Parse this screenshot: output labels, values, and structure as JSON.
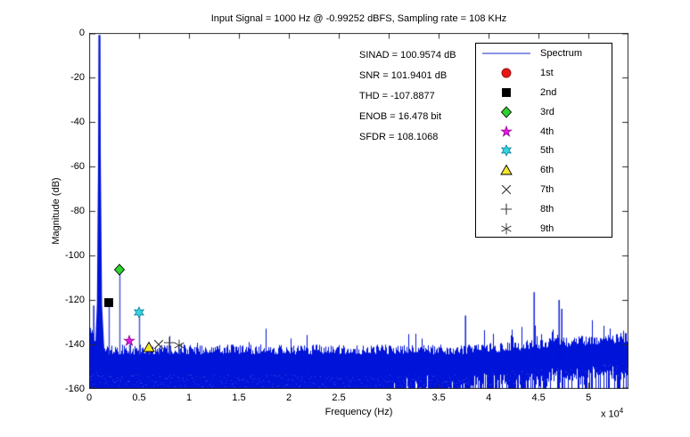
{
  "figure": {
    "title": "Input Signal = 1000 Hz @ -0.99252 dBFS, Sampling rate = 108 KHz",
    "xlabel": "Frequency (Hz)",
    "ylabel": "Magnitude (dB)",
    "x_multiplier_base": "x 10",
    "x_multiplier_exponent": "4"
  },
  "stats": {
    "lines": [
      "SINAD = 100.9574 dB",
      "SNR = 101.9401 dB",
      "THD = -107.8877",
      "ENOB = 16.478 bit",
      "SFDR = 108.1068"
    ]
  },
  "legend": {
    "items": [
      {
        "label": "Spectrum",
        "marker": "line",
        "color": "#4553d6",
        "edge": "#4553d6"
      },
      {
        "label": "1st",
        "marker": "circle",
        "color": "#e81616",
        "edge": "#991111"
      },
      {
        "label": "2nd",
        "marker": "square",
        "color": "#000000",
        "edge": "#000000"
      },
      {
        "label": "3rd",
        "marker": "diamond",
        "color": "#2fd32f",
        "edge": "#000000"
      },
      {
        "label": "4th",
        "marker": "star5",
        "color": "#e318e3",
        "edge": "#930d93"
      },
      {
        "label": "5th",
        "marker": "star6",
        "color": "#35d3e0",
        "edge": "#0d7f99"
      },
      {
        "label": "6th",
        "marker": "triangle",
        "color": "#f4e72a",
        "edge": "#000000"
      },
      {
        "label": "7th",
        "marker": "x",
        "color": "#3d3d3d",
        "edge": "#3d3d3d"
      },
      {
        "label": "8th",
        "marker": "plus",
        "color": "#3d3d3d",
        "edge": "#3d3d3d"
      },
      {
        "label": "9th",
        "marker": "asterisk",
        "color": "#3d3d3d",
        "edge": "#3d3d3d"
      }
    ]
  },
  "chart_data": {
    "type": "line",
    "title": "Input Signal = 1000 Hz @ -0.99252 dBFS, Sampling rate = 108 KHz",
    "xlabel": "Frequency (Hz)",
    "ylabel": "Magnitude (dB)",
    "x_tick_unit": "x 10^4",
    "xlim_hz": [
      0,
      54000
    ],
    "ylim_db": [
      -160,
      0
    ],
    "grid": false,
    "legend_position": "upper right",
    "series_name": "Spectrum",
    "series_color": "#0013d8",
    "sampling_rate_khz": 108,
    "x_tick_values_hz": [
      0,
      5000,
      10000,
      15000,
      20000,
      25000,
      30000,
      35000,
      40000,
      45000,
      50000
    ],
    "x_tick_labels": [
      "0",
      "0.5",
      "1",
      "1.5",
      "2",
      "2.5",
      "3",
      "3.5",
      "4",
      "4.5",
      "5"
    ],
    "y_tick_values_db": [
      0,
      -20,
      -40,
      -60,
      -80,
      -100,
      -120,
      -140,
      -160
    ],
    "y_tick_labels": [
      "0",
      "-20",
      "-40",
      "-60",
      "-80",
      "-100",
      "-120",
      "-140",
      "-160"
    ],
    "fundamental": {
      "label": "1st",
      "freq_hz": 1000,
      "level_db": -0.99252,
      "marker": "circle",
      "color": "#e81616",
      "edge": "#991111",
      "marker_shown": false
    },
    "fundamental_skirt_points": [
      [
        560,
        -146
      ],
      [
        780,
        -122
      ],
      [
        900,
        -54
      ],
      [
        955,
        -1
      ],
      [
        1105,
        -1
      ],
      [
        1160,
        -54
      ],
      [
        1290,
        -122
      ],
      [
        1560,
        -146
      ]
    ],
    "harmonics": [
      {
        "label": "2nd",
        "freq_hz": 2000,
        "level_db": -121.0,
        "marker": "square",
        "color": "#000000",
        "edge": "#000000"
      },
      {
        "label": "3rd",
        "freq_hz": 3000,
        "level_db": -106.5,
        "marker": "diamond",
        "color": "#2fd32f",
        "edge": "#000000"
      },
      {
        "label": "4th",
        "freq_hz": 4000,
        "level_db": -138.5,
        "marker": "star5",
        "color": "#e318e3",
        "edge": "#930d93"
      },
      {
        "label": "5th",
        "freq_hz": 5000,
        "level_db": -125.5,
        "marker": "star6",
        "color": "#35d3e0",
        "edge": "#0d7f99"
      },
      {
        "label": "6th",
        "freq_hz": 6000,
        "level_db": -141.0,
        "marker": "triangle",
        "color": "#f4e72a",
        "edge": "#000000"
      },
      {
        "label": "7th",
        "freq_hz": 7000,
        "level_db": -140.0,
        "marker": "x",
        "color": "#3d3d3d",
        "edge": "#3d3d3d"
      },
      {
        "label": "8th",
        "freq_hz": 8000,
        "level_db": -139.0,
        "marker": "plus",
        "color": "#3d3d3d",
        "edge": "#3d3d3d"
      },
      {
        "label": "9th",
        "freq_hz": 9000,
        "level_db": -140.5,
        "marker": "asterisk",
        "color": "#3d3d3d",
        "edge": "#3d3d3d"
      }
    ],
    "spurs": [
      {
        "freq_hz": 450,
        "level_db": -122.5
      },
      {
        "freq_hz": 37700,
        "level_db": -127.0
      },
      {
        "freq_hz": 44500,
        "level_db": -116.5
      },
      {
        "freq_hz": 47050,
        "level_db": -120.0
      },
      {
        "freq_hz": 47300,
        "level_db": -124.0
      }
    ],
    "noise_floor_db": {
      "typical": -146,
      "right_edge": -141,
      "dc_hump_peak": -131
    }
  }
}
